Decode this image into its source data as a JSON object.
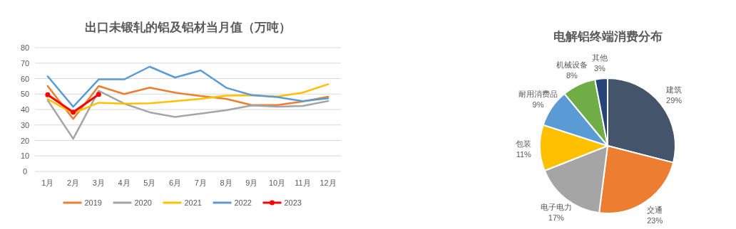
{
  "chart_data": [
    {
      "type": "line",
      "title": "出口未锻轧的铝及铝材当月值（万吨）",
      "categories": [
        "1月",
        "2月",
        "3月",
        "4月",
        "5月",
        "6月",
        "7月",
        "8月",
        "9月",
        "10月",
        "11月",
        "12月"
      ],
      "series": [
        {
          "name": "2019",
          "color": "#ed7d31",
          "values": [
            55.2,
            33.9,
            55.2,
            50,
            54.1,
            50.9,
            48.7,
            46.9,
            42.9,
            42.9,
            45.2,
            48.3
          ]
        },
        {
          "name": "2020",
          "color": "#a5a5a5",
          "values": [
            46,
            21.1,
            52.1,
            43.8,
            38.2,
            35.2,
            37.4,
            39.5,
            42.6,
            41.8,
            42.3,
            45.5
          ]
        },
        {
          "name": "2021",
          "color": "#ffc000",
          "values": [
            46.7,
            37.5,
            44.4,
            43.8,
            44,
            45.4,
            46.9,
            49,
            49.2,
            48.4,
            50.9,
            56.4
          ]
        },
        {
          "name": "2022",
          "color": "#5b9bd5",
          "values": [
            61.5,
            41.8,
            59.5,
            59.5,
            67.7,
            60.7,
            65.3,
            54.1,
            49.3,
            48,
            45.4,
            47.2
          ]
        },
        {
          "name": "2023",
          "color": "#ff0000",
          "marker": "circle",
          "values": [
            49.5,
            38.3,
            49.8,
            null,
            null,
            null,
            null,
            null,
            null,
            null,
            null,
            null
          ]
        }
      ],
      "ylim": [
        0,
        80
      ],
      "yticks": [
        0,
        10,
        20,
        30,
        40,
        50,
        60,
        70,
        80
      ],
      "grid": "y",
      "legend": "bottom"
    },
    {
      "type": "pie",
      "title": "电解铝终端消费分布",
      "categories": [
        "建筑",
        "交通",
        "电子电力",
        "包装",
        "耐用消费品",
        "机械设备",
        "其他"
      ],
      "values": [
        29,
        23,
        17,
        11,
        9,
        8,
        3
      ],
      "colors": [
        "#44546a",
        "#ed7d31",
        "#a5a5a5",
        "#ffc000",
        "#5b9bd5",
        "#70ad47",
        "#264478"
      ],
      "value_labels": [
        "29%",
        "23%",
        "17%",
        "11%",
        "9%",
        "8%",
        "3%"
      ]
    }
  ]
}
